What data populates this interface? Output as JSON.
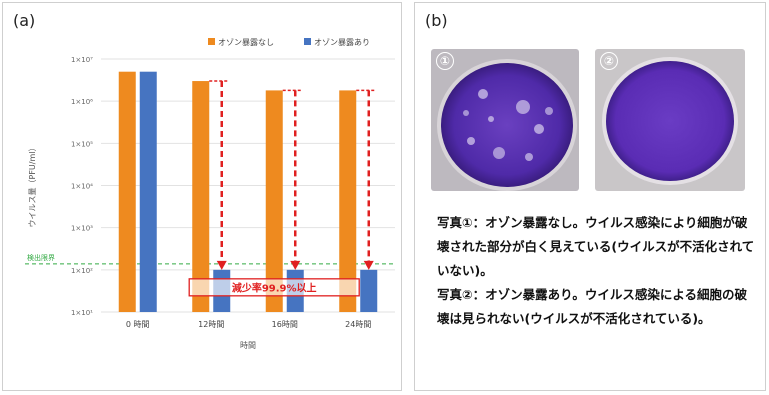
{
  "panel_a": {
    "label": "(a)"
  },
  "panel_b": {
    "label": "(b)"
  },
  "chart_data": {
    "type": "bar",
    "xlabel": "時間",
    "ylabel": "ウイルス量（PFU/ml）",
    "categories": [
      "0 時間",
      "12時間",
      "16時間",
      "24時間"
    ],
    "y_scale": "log",
    "ylim": [
      10,
      10000000
    ],
    "y_ticks": [
      10,
      100,
      1000,
      10000,
      100000,
      1000000,
      10000000
    ],
    "y_tick_labels": [
      "1×10¹",
      "1×10²",
      "1×10³",
      "1×10⁴",
      "1×10⁵",
      "1×10⁶",
      "1×10⁷"
    ],
    "legend_position": "top-right",
    "series": [
      {
        "name": "オゾン暴露なし",
        "color": "#ee8a1f",
        "values": [
          5000000,
          3000000,
          1800000,
          1800000
        ]
      },
      {
        "name": "オゾン暴露あり",
        "color": "#4674c1",
        "values": [
          5000000,
          100,
          100,
          100
        ]
      }
    ],
    "detection_limit": {
      "label": "検出限界",
      "value": 100,
      "color": "#33aa44"
    },
    "annotation": {
      "text": "減少率99.9%以上",
      "color": "#e02020"
    },
    "arrows_color": "#e02020"
  },
  "photos": [
    {
      "number": "①"
    },
    {
      "number": "②"
    }
  ],
  "caption": {
    "line1": "写真①：オゾン暴露なし。ウイルス感染により細胞が破壊された部分が白く見えている(ウイルスが不活化されていない)。",
    "line2": "写真②：オゾン暴露あり。ウイルス感染による細胞の破壊は見られない(ウイルスが不活化されている)。"
  }
}
